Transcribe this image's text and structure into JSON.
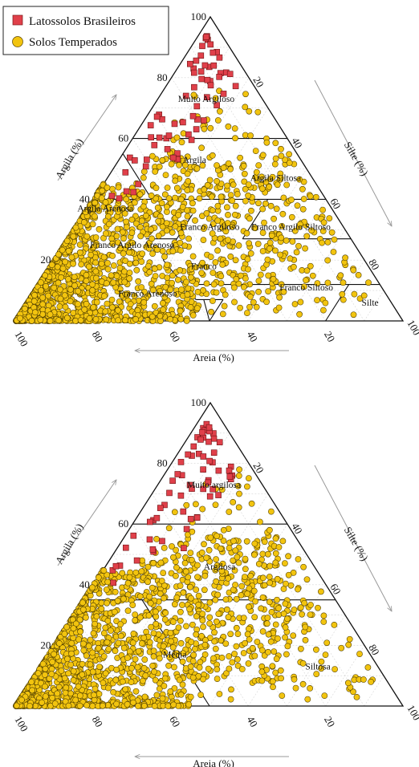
{
  "legend": {
    "items": [
      {
        "label": "Latossolos Brasileiros",
        "color": "#e0404a",
        "shape": "square"
      },
      {
        "label": "Solos Temperados",
        "color": "#f2c40f",
        "shape": "circle"
      }
    ]
  },
  "chart_data": [
    {
      "type": "scatter",
      "subtype": "ternary",
      "axes": {
        "left": {
          "label": "Argila (%)",
          "ticks": [
            "20",
            "40",
            "60",
            "80",
            "100"
          ]
        },
        "right": {
          "label": "Silte (%)",
          "ticks": [
            "20",
            "40",
            "60",
            "80",
            "100"
          ]
        },
        "bottom": {
          "label": "Areia (%)",
          "ticks": [
            "100",
            "80",
            "60",
            "40",
            "20"
          ]
        }
      },
      "grid": true,
      "legend_position": "top-left",
      "zone_labels": [
        {
          "text": "Muito Argiloso",
          "clay": 72,
          "silt": 13
        },
        {
          "text": "Argila",
          "clay": 52,
          "silt": 20
        },
        {
          "text": "Argila Siltosa",
          "clay": 46,
          "silt": 44
        },
        {
          "text": "Argila Arenosa",
          "clay": 36,
          "silt": 5
        },
        {
          "text": "Franco Argiloso",
          "clay": 30,
          "silt": 35
        },
        {
          "text": "Franco Argilo Siltoso",
          "clay": 30,
          "silt": 56
        },
        {
          "text": "Franco Argilo Arenoso",
          "clay": 24,
          "silt": 18
        },
        {
          "text": "Franco",
          "clay": 17,
          "silt": 40
        },
        {
          "text": "Franco Siltoso",
          "clay": 10,
          "silt": 70
        },
        {
          "text": "Franco Arenoso",
          "clay": 8,
          "silt": 30
        },
        {
          "text": "Silte",
          "clay": 5,
          "silt": 89
        }
      ]
    },
    {
      "type": "scatter",
      "subtype": "ternary",
      "axes": {
        "left": {
          "label": "Argila (%)",
          "ticks": [
            "20",
            "40",
            "60",
            "80",
            "100"
          ]
        },
        "right": {
          "label": "Silte (%)",
          "ticks": [
            "20",
            "40",
            "60",
            "80",
            "100"
          ]
        },
        "bottom": {
          "label": "Areia (%)",
          "ticks": [
            "100",
            "80",
            "60",
            "40",
            "20"
          ]
        }
      },
      "grid": true,
      "zone_labels": [
        {
          "text": "Muito argilosa",
          "clay": 72,
          "silt": 15
        },
        {
          "text": "Argilosa",
          "clay": 45,
          "silt": 30
        },
        {
          "text": "Média",
          "clay": 16,
          "silt": 33
        },
        {
          "text": "Siltosa",
          "clay": 12,
          "silt": 72
        }
      ]
    }
  ]
}
